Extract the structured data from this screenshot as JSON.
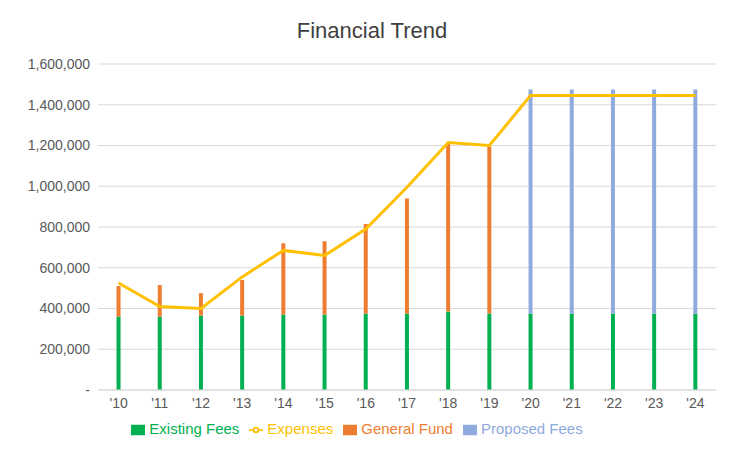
{
  "chart_data": {
    "type": "bar",
    "title": "Financial Trend",
    "stacked": true,
    "grid": true,
    "legend": "bottom",
    "categories": [
      "'10",
      "'11",
      "'12",
      "'13",
      "'14",
      "'15",
      "'16",
      "'17",
      "'18",
      "'19",
      "'20",
      "'21",
      "'22",
      "'23",
      "'24"
    ],
    "ylim": [
      0,
      1600000
    ],
    "yticks": [
      {
        "value": 0,
        "label": "-"
      },
      {
        "value": 200000,
        "label": "200,000"
      },
      {
        "value": 400000,
        "label": "400,000"
      },
      {
        "value": 600000,
        "label": "600,000"
      },
      {
        "value": 800000,
        "label": "800,000"
      },
      {
        "value": 1000000,
        "label": "1,000,000"
      },
      {
        "value": 1200000,
        "label": "1,200,000"
      },
      {
        "value": 1400000,
        "label": "1,400,000"
      },
      {
        "value": 1600000,
        "label": "1,600,000"
      }
    ],
    "series": [
      {
        "name": "Existing Fees",
        "type": "bar",
        "color": "#00b050",
        "values": [
          360000,
          360000,
          365000,
          365000,
          370000,
          370000,
          375000,
          375000,
          385000,
          375000,
          375000,
          375000,
          375000,
          375000,
          375000
        ]
      },
      {
        "name": "General Fund",
        "type": "bar",
        "color": "#ed7d31",
        "values": [
          150000,
          155000,
          110000,
          175000,
          350000,
          360000,
          440000,
          565000,
          825000,
          820000,
          null,
          null,
          null,
          null,
          null
        ]
      },
      {
        "name": "Proposed Fees",
        "type": "bar",
        "color": "#8faadc",
        "values": [
          null,
          null,
          null,
          null,
          null,
          null,
          null,
          null,
          null,
          null,
          1100000,
          1100000,
          1100000,
          1100000,
          1100000
        ]
      },
      {
        "name": "Expenses",
        "type": "line",
        "color": "#ffc000",
        "marker": "none",
        "values": [
          525000,
          410000,
          400000,
          555000,
          685000,
          660000,
          790000,
          995000,
          1215000,
          1200000,
          1445000,
          1445000,
          1445000,
          1445000,
          1445000
        ]
      }
    ]
  }
}
